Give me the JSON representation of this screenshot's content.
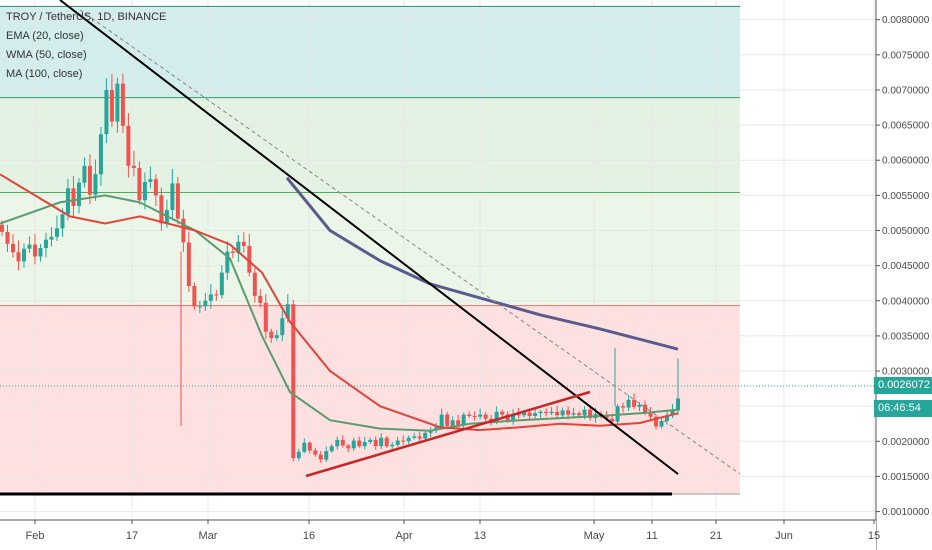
{
  "legend": {
    "symbol": "TROY / TetherUS, 1D, BINANCE",
    "ema": "EMA (20, close)",
    "wma": "WMA (50, close)",
    "ma": "MA (100, close)"
  },
  "price_badge": {
    "price": "0.0026072",
    "countdown": "06:46:54",
    "color": "#26a69a"
  },
  "chart_data": {
    "type": "candlestick",
    "title": "TROY / TetherUS, 1D, BINANCE",
    "x_tick_labels": [
      "Feb",
      "17",
      "Mar",
      "16",
      "Apr",
      "13",
      "May",
      "11",
      "21",
      "Jun",
      "15"
    ],
    "y_tick_labels": [
      "0.0010000",
      "0.0015000",
      "0.0020000",
      "0.0025000",
      "0.0030000",
      "0.0035000",
      "0.0040000",
      "0.0045000",
      "0.0050000",
      "0.0055000",
      "0.0060000",
      "0.0065000",
      "0.0070000",
      "0.0075000",
      "0.0080000"
    ],
    "ylim": [
      0.00088,
      0.00828
    ],
    "colors": {
      "up": "#26a69a",
      "down": "#ef5350",
      "ema": "#5b9c6e",
      "wma": "#5a5a8c",
      "ma": "#e0453a"
    },
    "series": [
      {
        "name": "EMA (20, close)",
        "values": [
          0.0051,
          0.0054,
          0.0055,
          0.0054,
          0.005,
          0.0046,
          0.0035,
          0.0027,
          0.0023,
          0.00218,
          0.00215,
          0.00225,
          0.0023,
          0.00233,
          0.00236,
          0.0024,
          0.00245
        ]
      },
      {
        "name": "MA (100, close)",
        "values": [
          0.0058,
          0.0052,
          0.0051,
          0.0052,
          0.005,
          0.0048,
          0.0044,
          0.0037,
          0.003,
          0.0025,
          0.0022,
          0.00216,
          0.0022,
          0.00225,
          0.00222,
          0.00226,
          0.0024
        ]
      },
      {
        "name": "WMA (50, close)",
        "values": [
          0.00575,
          0.005,
          0.00457,
          0.00424,
          0.00404,
          0.0038,
          0.0036,
          0.00331
        ]
      }
    ],
    "horizontal_levels": [
      0.00819,
      0.00689,
      0.00554,
      0.00393,
      0.00125
    ],
    "zone_colors": [
      "#d3ecec",
      "#e3f2e3",
      "#ebf5e8",
      "#fde0df"
    ]
  }
}
